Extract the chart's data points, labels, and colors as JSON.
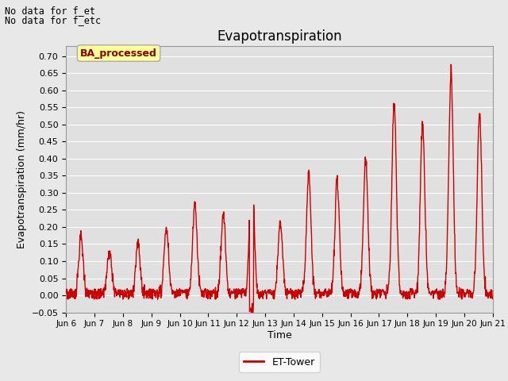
{
  "title": "Evapotranspiration",
  "ylabel": "Evapotranspiration (mm/hr)",
  "xlabel": "Time",
  "ylim": [
    -0.05,
    0.73
  ],
  "yticks": [
    -0.05,
    0.0,
    0.05,
    0.1,
    0.15,
    0.2,
    0.25,
    0.3,
    0.35,
    0.4,
    0.45,
    0.5,
    0.55,
    0.6,
    0.65,
    0.7
  ],
  "line_color": "#cc0000",
  "line_width": 1.0,
  "fig_bg_color": "#e8e8e8",
  "plot_bg_color": "#e0e0e0",
  "grid_color": "#ffffff",
  "annotation_text1": "No data for f_et",
  "annotation_text2": "No data for f_etc",
  "box_label": "BA_processed",
  "legend_label": "ET-Tower",
  "title_fontsize": 12,
  "label_fontsize": 9,
  "tick_fontsize": 8,
  "xtick_labels": [
    "Jun 6",
    "Jun 7",
    "Jun 8",
    "Jun 9",
    "Jun 10",
    "Jun 11",
    "Jun 12",
    "Jun 13",
    "Jun 14",
    "Jun 15",
    "Jun 16",
    "Jun 17",
    "Jun 18",
    "Jun 19",
    "Jun 20",
    "Jun 21"
  ],
  "days": 15,
  "pts_per_day": 96
}
